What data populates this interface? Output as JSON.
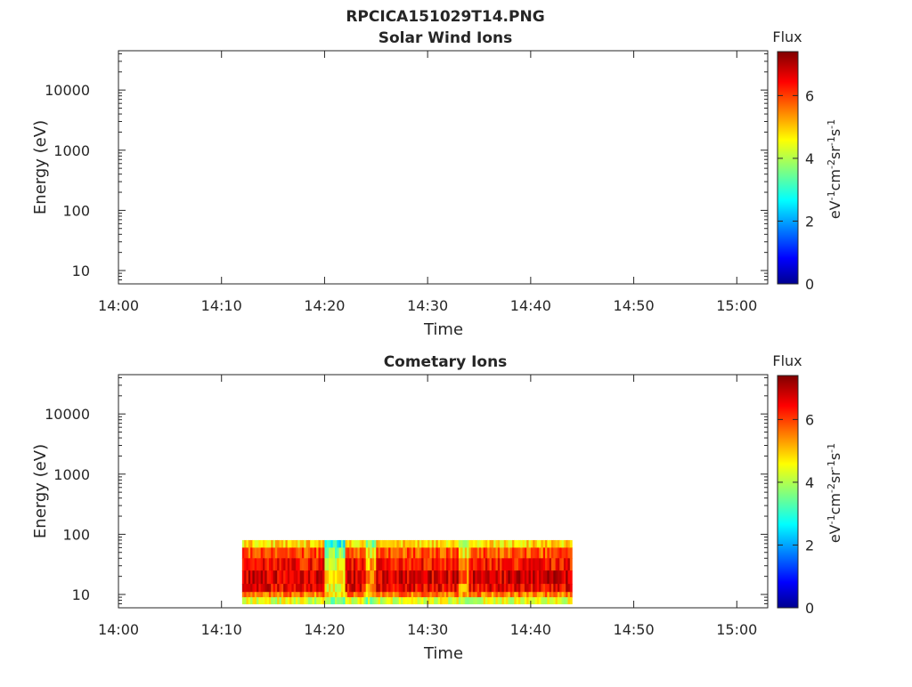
{
  "figure": {
    "title": "RPCICA151029T14.PNG"
  },
  "colorbar": {
    "label": "Flux",
    "unit_parts": [
      "eV",
      "-1",
      "cm",
      "-2",
      "sr",
      "-1",
      "s",
      "-1"
    ],
    "range": [
      0,
      7.4
    ],
    "ticks": [
      "0",
      "2",
      "4",
      "6"
    ],
    "colormap": "jet"
  },
  "chart_data": [
    {
      "type": "heatmap",
      "title": "Solar Wind Ions",
      "xlabel": "Time",
      "ylabel": "Energy (eV)",
      "x_ticks": [
        "14:00",
        "14:10",
        "14:20",
        "14:30",
        "14:40",
        "14:50",
        "15:00"
      ],
      "xlim": [
        "14:00",
        "15:03"
      ],
      "y_ticks": [
        "10",
        "100",
        "1000",
        "10000"
      ],
      "ylim": [
        6,
        45000
      ],
      "y_scale": "log",
      "grid": false,
      "data": []
    },
    {
      "type": "heatmap",
      "title": "Cometary Ions",
      "xlabel": "Time",
      "ylabel": "Energy (eV)",
      "x_ticks": [
        "14:00",
        "14:10",
        "14:20",
        "14:30",
        "14:40",
        "14:50",
        "15:00"
      ],
      "xlim": [
        "14:00",
        "15:03"
      ],
      "y_ticks": [
        "10",
        "100",
        "1000",
        "10000"
      ],
      "ylim": [
        6,
        45000
      ],
      "y_scale": "log",
      "grid": false,
      "data_extent": {
        "time": [
          "14:12",
          "14:44"
        ],
        "energy_ev": [
          6,
          80
        ]
      },
      "flux_profile": [
        {
          "energy_ev": 80,
          "flux": 4.3
        },
        {
          "energy_ev": 60,
          "flux": 5.5
        },
        {
          "energy_ev": 40,
          "flux": 6.2
        },
        {
          "energy_ev": 25,
          "flux": 6.6
        },
        {
          "energy_ev": 15,
          "flux": 6.9
        },
        {
          "energy_ev": 11,
          "flux": 6.2
        },
        {
          "energy_ev": 9,
          "flux": 5.0
        },
        {
          "energy_ev": 7,
          "flux": 3.8
        }
      ],
      "low_flux_intervals": [
        {
          "from": "14:20",
          "to": "14:22",
          "flux": 4.8
        },
        {
          "from": "14:24",
          "to": "14:25",
          "flux": 5.6
        },
        {
          "from": "14:33",
          "to": "14:34",
          "flux": 5.7
        }
      ]
    }
  ]
}
